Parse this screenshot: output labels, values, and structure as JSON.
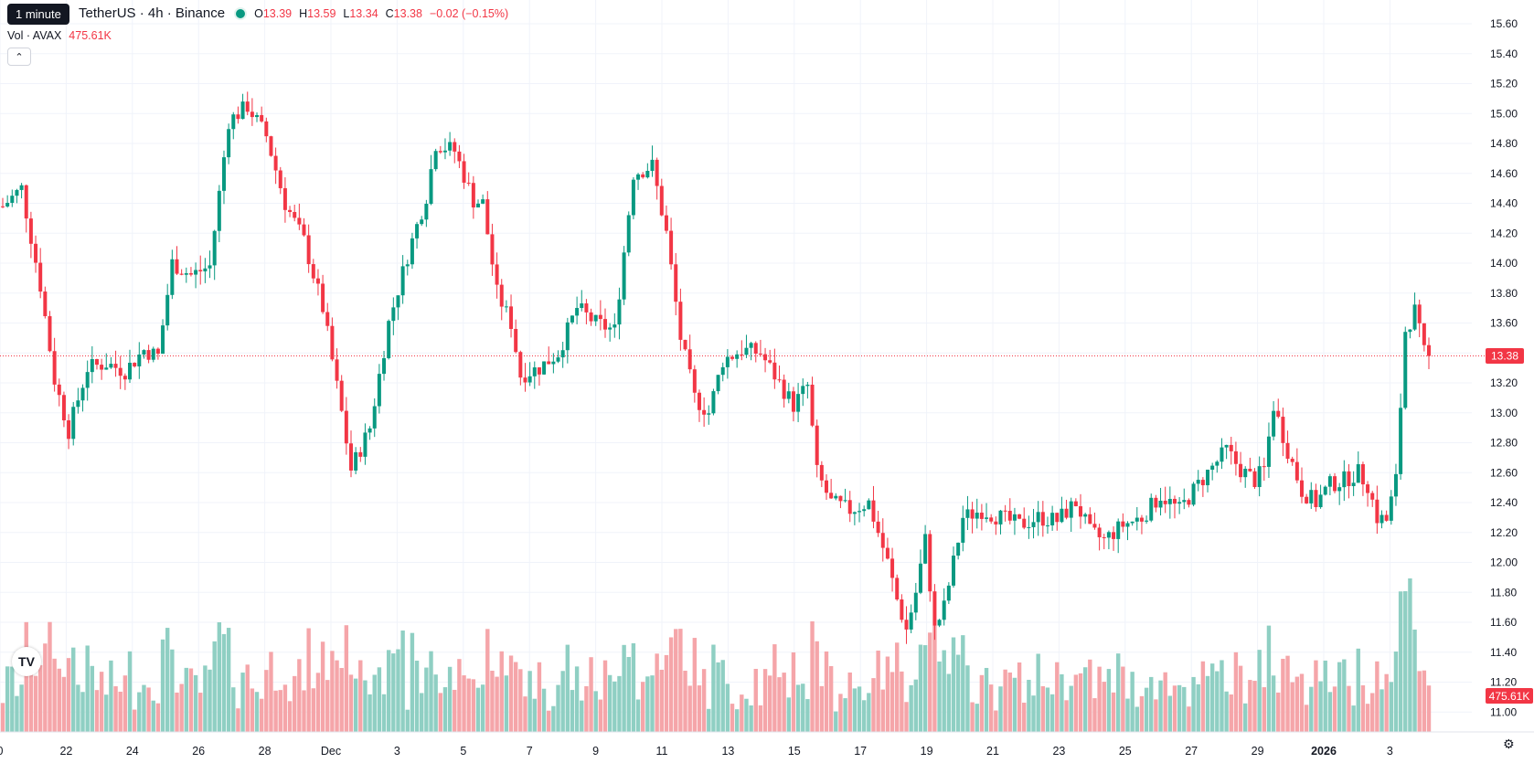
{
  "legend": {
    "tooltip": "1 minute",
    "symbol": "TetherUS · 4h · Binance",
    "o_label": "O",
    "o": "13.39",
    "h_label": "H",
    "h": "13.59",
    "l_label": "L",
    "l": "13.34",
    "c_label": "C",
    "c": "13.38",
    "change": "−0.02 (−0.15%)",
    "vol_label": "Vol · AVAX",
    "vol_value": "475.61K"
  },
  "colors": {
    "up": "#089981",
    "down": "#f23645",
    "up_vol": "#8fcfc3",
    "down_vol": "#f5a5a9",
    "grid": "#f0f3fa"
  },
  "chart_data": {
    "type": "candlestick",
    "y_ticks": [
      "15.60",
      "15.40",
      "15.20",
      "15.00",
      "14.80",
      "14.60",
      "14.40",
      "14.20",
      "14.00",
      "13.80",
      "13.60",
      "13.40",
      "13.20",
      "13.00",
      "12.80",
      "12.60",
      "12.40",
      "12.20",
      "12.00",
      "11.80",
      "11.60",
      "11.40",
      "11.20",
      "11.00"
    ],
    "ylim": [
      10.88,
      15.68
    ],
    "x_ticks": [
      "0",
      "22",
      "24",
      "26",
      "28",
      "Dec",
      "3",
      "5",
      "7",
      "9",
      "11",
      "13",
      "15",
      "17",
      "19",
      "21",
      "23",
      "25",
      "27",
      "29",
      "2026",
      "3"
    ],
    "last_price": "13.38",
    "last_volume": "475.61K",
    "price_path": [
      [
        0,
        14.38
      ],
      [
        4,
        14.5
      ],
      [
        8,
        13.85
      ],
      [
        11,
        13.22
      ],
      [
        14,
        12.88
      ],
      [
        18,
        13.3
      ],
      [
        22,
        13.33
      ],
      [
        26,
        13.28
      ],
      [
        30,
        13.42
      ],
      [
        33,
        13.38
      ],
      [
        36,
        14.0
      ],
      [
        40,
        13.92
      ],
      [
        44,
        13.98
      ],
      [
        48,
        14.95
      ],
      [
        52,
        15.05
      ],
      [
        56,
        14.85
      ],
      [
        60,
        14.4
      ],
      [
        64,
        14.15
      ],
      [
        68,
        13.7
      ],
      [
        72,
        13.0
      ],
      [
        74,
        12.62
      ],
      [
        78,
        12.9
      ],
      [
        82,
        13.6
      ],
      [
        86,
        14.05
      ],
      [
        90,
        14.45
      ],
      [
        92,
        14.8
      ],
      [
        96,
        14.75
      ],
      [
        100,
        14.42
      ],
      [
        102,
        14.4
      ],
      [
        105,
        13.8
      ],
      [
        108,
        13.6
      ],
      [
        110,
        13.25
      ],
      [
        114,
        13.3
      ],
      [
        118,
        13.4
      ],
      [
        122,
        13.7
      ],
      [
        126,
        13.6
      ],
      [
        130,
        13.55
      ],
      [
        134,
        14.6
      ],
      [
        138,
        14.65
      ],
      [
        141,
        14.2
      ],
      [
        144,
        13.5
      ],
      [
        147,
        13.1
      ],
      [
        150,
        13.0
      ],
      [
        153,
        13.35
      ],
      [
        157,
        13.42
      ],
      [
        161,
        13.4
      ],
      [
        165,
        13.2
      ],
      [
        168,
        13.05
      ],
      [
        171,
        13.18
      ],
      [
        173,
        12.6
      ],
      [
        176,
        12.4
      ],
      [
        180,
        12.35
      ],
      [
        184,
        12.4
      ],
      [
        186,
        12.2
      ],
      [
        188,
        12.0
      ],
      [
        190,
        11.75
      ],
      [
        192,
        11.55
      ],
      [
        194,
        11.8
      ],
      [
        196,
        12.15
      ],
      [
        198,
        11.55
      ],
      [
        200,
        11.7
      ],
      [
        202,
        12.0
      ],
      [
        204,
        12.3
      ],
      [
        208,
        12.35
      ],
      [
        212,
        12.3
      ],
      [
        216,
        12.25
      ],
      [
        220,
        12.3
      ],
      [
        224,
        12.28
      ],
      [
        228,
        12.4
      ],
      [
        231,
        12.2
      ],
      [
        234,
        12.15
      ],
      [
        238,
        12.25
      ],
      [
        242,
        12.3
      ],
      [
        246,
        12.45
      ],
      [
        250,
        12.35
      ],
      [
        253,
        12.48
      ],
      [
        256,
        12.6
      ],
      [
        260,
        12.75
      ],
      [
        263,
        12.62
      ],
      [
        266,
        12.55
      ],
      [
        268,
        12.62
      ],
      [
        270,
        13.05
      ],
      [
        273,
        12.75
      ],
      [
        276,
        12.48
      ],
      [
        279,
        12.4
      ],
      [
        282,
        12.52
      ],
      [
        285,
        12.55
      ],
      [
        288,
        12.6
      ],
      [
        290,
        12.52
      ],
      [
        292,
        12.3
      ],
      [
        294,
        12.28
      ],
      [
        296,
        12.55
      ],
      [
        298,
        13.55
      ],
      [
        300,
        13.68
      ],
      [
        302,
        13.4
      ],
      [
        303,
        13.38
      ]
    ]
  }
}
